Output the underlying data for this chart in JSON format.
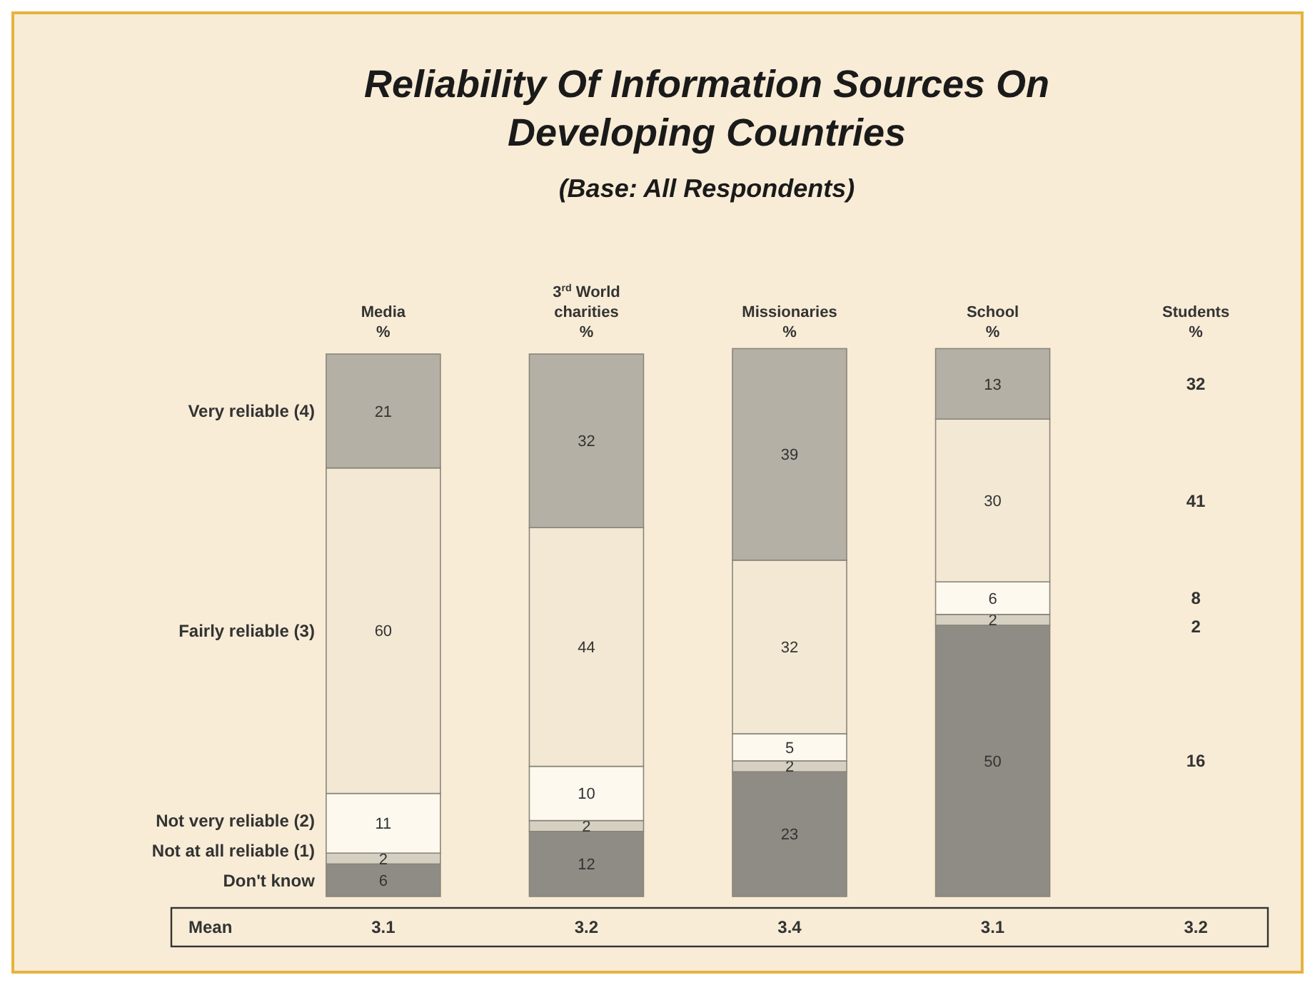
{
  "chart_data": {
    "type": "bar",
    "stacked": true,
    "title": "Reliability Of Information Sources On Developing Countries",
    "subtitle": "(Base: All Respondents)",
    "categories": [
      "Media\n%",
      "3$^{rd}$ World\ncharities\n%",
      "Missionaries\n%",
      "School\n%",
      "Students\n%"
    ],
    "series": [
      {
        "name": "Don't know",
        "color": "#8f8c86",
        "values": [
          6,
          12,
          23,
          50,
          null
        ]
      },
      {
        "name": "Not at all reliable (1)",
        "color": "#d6d0c2",
        "values": [
          2,
          2,
          2,
          2,
          null
        ]
      },
      {
        "name": "Not very reliable (2)",
        "color": "#fdf9ef",
        "values": [
          11,
          10,
          5,
          6,
          null
        ]
      },
      {
        "name": "Fairly reliable (3)",
        "color": "#f2e8d4",
        "values": [
          60,
          44,
          32,
          30,
          null
        ]
      },
      {
        "name": "Very reliable (4)",
        "color": "#b5b0a5",
        "values": [
          21,
          32,
          39,
          13,
          null
        ]
      }
    ],
    "data_labels": true,
    "legend": "left",
    "annotations": [
      "32",
      "41",
      "8",
      "2",
      "16",
      "Mean",
      "3.1",
      "3.2",
      "3.4",
      "3.1",
      "3.2"
    ]
  }
}
